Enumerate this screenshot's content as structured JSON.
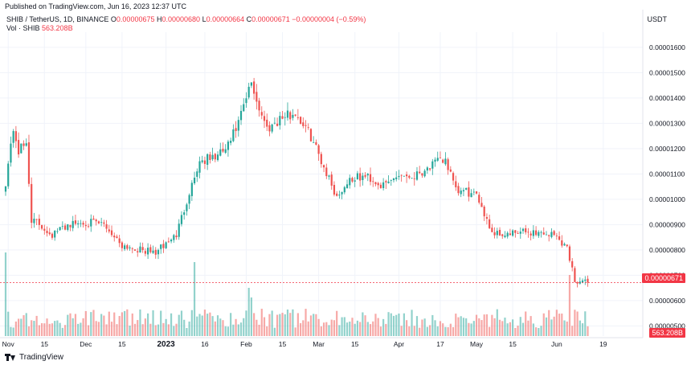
{
  "header": {
    "published": "Published on TradingView.com, Jun 16, 2023 12:37 UTC",
    "symbol": "SHIB / TetherUS, 1D, BINANCE",
    "o_label": "O",
    "o_value": "0.00000675",
    "h_label": "H",
    "h_value": "0.00000680",
    "l_label": "L",
    "l_value": "0.00000664",
    "c_label": "C",
    "c_value": "0.00000671",
    "change": "−0.00000004 (−0.59%)",
    "vol_label": "Vol · SHIB",
    "vol_value": "563.208B",
    "currency": "USDT"
  },
  "footer": {
    "brand": "TradingView"
  },
  "colors": {
    "up": "#26a69a",
    "down": "#ef5350",
    "accent": "#f23645"
  },
  "chart_data": {
    "type": "candlestick",
    "y_axis": {
      "ticks": [
        5e-06,
        6e-06,
        7e-06,
        8e-06,
        9e-06,
        1e-05,
        1.1e-05,
        1.2e-05,
        1.3e-05,
        1.4e-05,
        1.5e-05,
        1.6e-05
      ],
      "labels": [
        "0.00000500",
        "0.00000600",
        "0.00000700",
        "0.00000800",
        "0.00000900",
        "0.00001000",
        "0.00001100",
        "0.00001200",
        "0.00001300",
        "0.00001400",
        "0.00001500",
        "0.00001600"
      ],
      "range": [
        4.6e-06,
        1.66e-05
      ]
    },
    "x_axis": {
      "labels": [
        "Nov",
        "15",
        "Dec",
        "15",
        "2023",
        "16",
        "Feb",
        "15",
        "Mar",
        "15",
        "Apr",
        "17",
        "May",
        "15",
        "Jun",
        "19"
      ],
      "label_days": [
        1,
        15,
        31,
        45,
        62,
        77,
        93,
        107,
        121,
        135,
        152,
        168,
        182,
        196,
        213,
        231
      ]
    },
    "last_price_label": "0.00000671",
    "last_volume_label": "563.208B",
    "anchors": [
      {
        "d": 0,
        "p": 1.07e-05
      },
      {
        "d": 3,
        "p": 1.28e-05
      },
      {
        "d": 5,
        "p": 1.19e-05
      },
      {
        "d": 8,
        "p": 1.22e-05
      },
      {
        "d": 10,
        "p": 9.2e-06
      },
      {
        "d": 13,
        "p": 9e-06
      },
      {
        "d": 18,
        "p": 8.6e-06
      },
      {
        "d": 24,
        "p": 9e-06
      },
      {
        "d": 31,
        "p": 9.1e-06
      },
      {
        "d": 38,
        "p": 9e-06
      },
      {
        "d": 45,
        "p": 8.2e-06
      },
      {
        "d": 52,
        "p": 8e-06
      },
      {
        "d": 58,
        "p": 7.9e-06
      },
      {
        "d": 66,
        "p": 8.6e-06
      },
      {
        "d": 71,
        "p": 1.03e-05
      },
      {
        "d": 75,
        "p": 1.15e-05
      },
      {
        "d": 82,
        "p": 1.17e-05
      },
      {
        "d": 86,
        "p": 1.21e-05
      },
      {
        "d": 90,
        "p": 1.3e-05
      },
      {
        "d": 95,
        "p": 1.46e-05
      },
      {
        "d": 98,
        "p": 1.36e-05
      },
      {
        "d": 101,
        "p": 1.28e-05
      },
      {
        "d": 106,
        "p": 1.32e-05
      },
      {
        "d": 112,
        "p": 1.34e-05
      },
      {
        "d": 118,
        "p": 1.25e-05
      },
      {
        "d": 123,
        "p": 1.13e-05
      },
      {
        "d": 128,
        "p": 1.01e-05
      },
      {
        "d": 133,
        "p": 1.08e-05
      },
      {
        "d": 140,
        "p": 1.09e-05
      },
      {
        "d": 146,
        "p": 1.05e-05
      },
      {
        "d": 152,
        "p": 1.1e-05
      },
      {
        "d": 157,
        "p": 1.09e-05
      },
      {
        "d": 164,
        "p": 1.13e-05
      },
      {
        "d": 170,
        "p": 1.16e-05
      },
      {
        "d": 174,
        "p": 1.03e-05
      },
      {
        "d": 178,
        "p": 1.03e-05
      },
      {
        "d": 183,
        "p": 1e-05
      },
      {
        "d": 188,
        "p": 8.7e-06
      },
      {
        "d": 194,
        "p": 8.6e-06
      },
      {
        "d": 200,
        "p": 8.7e-06
      },
      {
        "d": 205,
        "p": 8.7e-06
      },
      {
        "d": 212,
        "p": 8.6e-06
      },
      {
        "d": 217,
        "p": 8.1e-06
      },
      {
        "d": 220,
        "p": 6.8e-06
      },
      {
        "d": 225,
        "p": 6.7e-06
      }
    ],
    "volume_spikes": [
      {
        "d": 0,
        "v": 2.6
      },
      {
        "d": 73,
        "v": 2.3
      },
      {
        "d": 94,
        "v": 1.5
      },
      {
        "d": 95,
        "v": 1.2
      },
      {
        "d": 218,
        "v": 1.9
      }
    ]
  }
}
